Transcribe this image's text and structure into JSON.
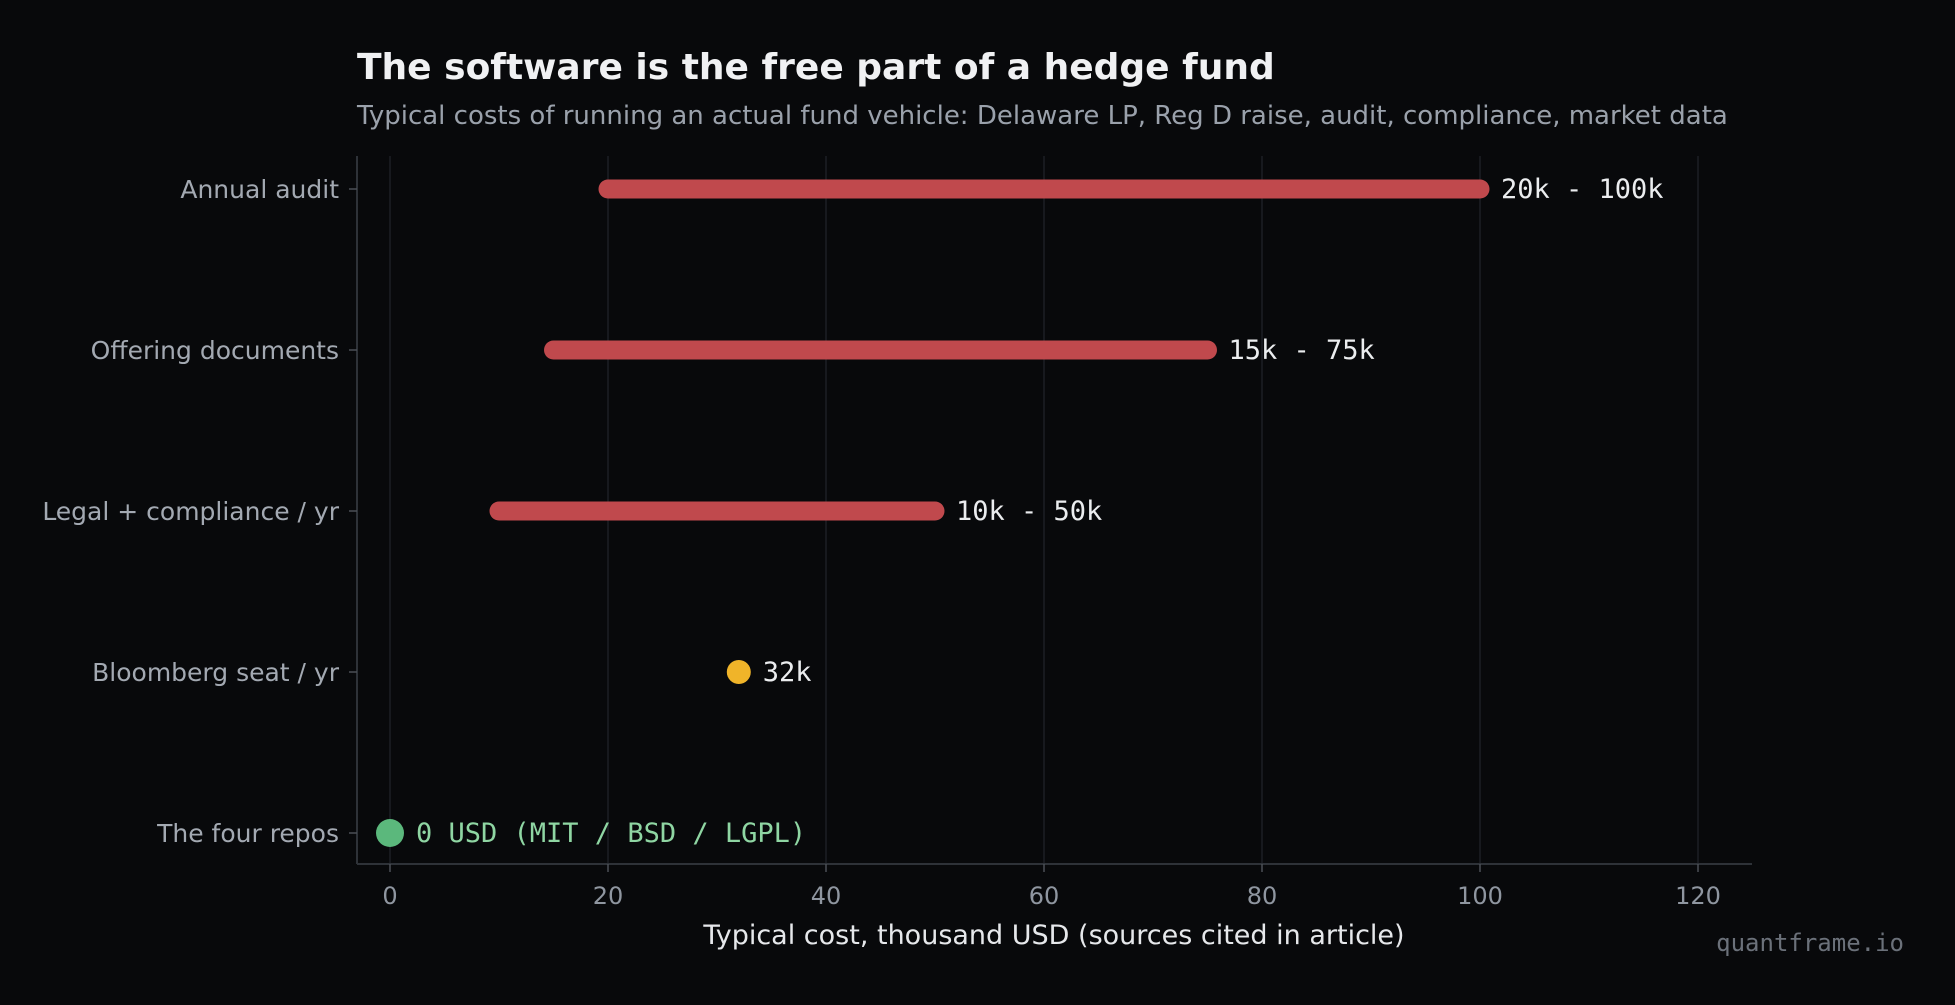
{
  "chart_data": {
    "type": "range-bar",
    "title": "The software is the free part of a hedge fund",
    "subtitle": "Typical costs of running an actual fund vehicle: Delaware LP, Reg D raise, audit, compliance, market data",
    "xlabel": "Typical cost, thousand USD (sources cited in article)",
    "xlim": [
      -3,
      125
    ],
    "xticks": [
      0,
      20,
      40,
      60,
      80,
      100,
      120
    ],
    "grid": "vertical",
    "items": [
      {
        "category": "Annual audit",
        "low": 20,
        "high": 100,
        "label": "20k - 100k",
        "color": "#c0494d"
      },
      {
        "category": "Offering documents",
        "low": 15,
        "high": 75,
        "label": "15k - 75k",
        "color": "#c0494d"
      },
      {
        "category": "Legal + compliance / yr",
        "low": 10,
        "high": 50,
        "label": "10k - 50k",
        "color": "#c0494d"
      },
      {
        "category": "Bloomberg seat / yr",
        "low": 32,
        "high": 32,
        "label": "32k",
        "color": "#f0b429"
      },
      {
        "category": "The four repos",
        "low": 0,
        "high": 0,
        "label": "0 USD  (MIT / BSD / LGPL)",
        "color": "#5bb87c"
      }
    ],
    "watermark": "quantframe.io"
  }
}
